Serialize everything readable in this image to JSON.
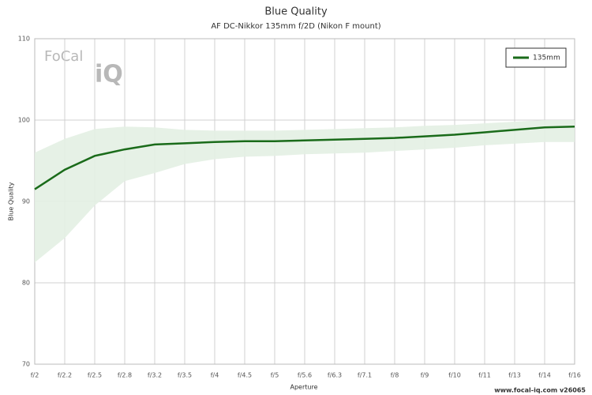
{
  "chart_data": {
    "type": "line",
    "title": "Blue Quality",
    "subtitle": "AF DC-Nikkor 135mm f/2D (Nikon F mount)",
    "x_label": "Aperture",
    "y_label": "Blue Quality",
    "categories": [
      "f/2",
      "f/2.2",
      "f/2.5",
      "f/2.8",
      "f/3.2",
      "f/3.5",
      "f/4",
      "f/4.5",
      "f/5",
      "f/5.6",
      "f/6.3",
      "f/7.1",
      "f/8",
      "f/9",
      "f/10",
      "f/11",
      "f/13",
      "f/14",
      "f/16"
    ],
    "series": [
      {
        "name": "135mm",
        "color": "#1a6b1a",
        "band_color": "#e3efe3",
        "values": [
          91.5,
          93.9,
          95.6,
          96.4,
          97.0,
          97.15,
          97.3,
          97.4,
          97.4,
          97.5,
          97.6,
          97.7,
          97.8,
          98.0,
          98.2,
          98.5,
          98.8,
          99.1,
          99.2
        ],
        "upper": [
          96.0,
          97.7,
          98.9,
          99.2,
          99.1,
          98.8,
          98.7,
          98.7,
          98.7,
          98.8,
          98.9,
          99.0,
          99.1,
          99.3,
          99.4,
          99.6,
          99.8,
          100.0,
          100.0
        ],
        "lower": [
          82.5,
          85.5,
          89.5,
          92.5,
          93.5,
          94.6,
          95.2,
          95.5,
          95.6,
          95.8,
          95.9,
          96.0,
          96.2,
          96.4,
          96.6,
          96.9,
          97.1,
          97.3,
          97.3
        ]
      }
    ],
    "ylim": [
      70,
      110
    ],
    "yticks": [
      70,
      80,
      90,
      100,
      110
    ],
    "grid": true,
    "legend": "top-right",
    "logo_top": "FoCal",
    "logo_bottom": "iQ",
    "footer": "www.focal-iq.com  v26065"
  }
}
